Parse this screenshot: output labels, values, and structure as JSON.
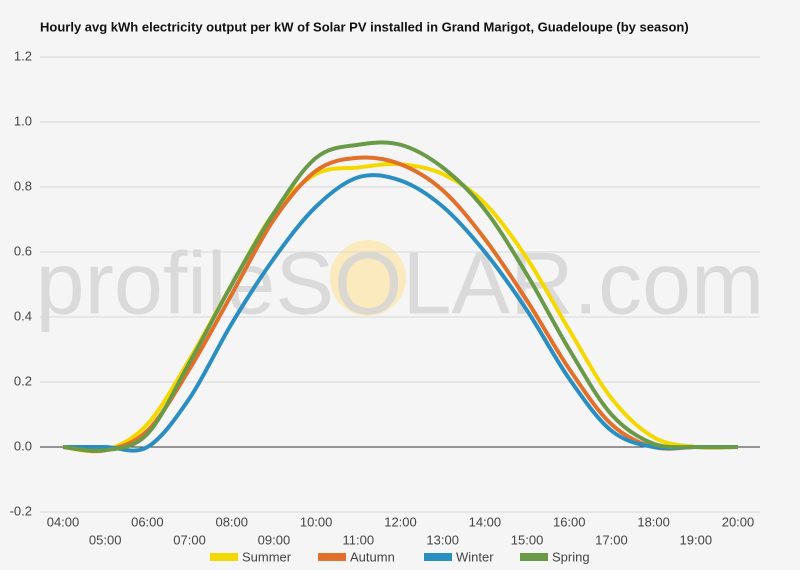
{
  "chart_data": {
    "type": "line",
    "title": "Hourly avg kWh electricity output per kW of Solar PV installed in Grand Marigot, Guadeloupe (by season)",
    "watermark": "profileSOLAR.com",
    "categories": [
      "04:00",
      "05:00",
      "06:00",
      "07:00",
      "08:00",
      "09:00",
      "10:00",
      "11:00",
      "12:00",
      "13:00",
      "14:00",
      "15:00",
      "16:00",
      "17:00",
      "18:00",
      "19:00",
      "20:00"
    ],
    "series": [
      {
        "name": "Summer",
        "color": "#f5d800",
        "values": [
          0,
          -0.01,
          0.07,
          0.27,
          0.5,
          0.72,
          0.84,
          0.86,
          0.87,
          0.84,
          0.75,
          0.58,
          0.36,
          0.15,
          0.03,
          0,
          0
        ]
      },
      {
        "name": "Autumn",
        "color": "#e0702a",
        "values": [
          0,
          -0.01,
          0.05,
          0.24,
          0.47,
          0.7,
          0.85,
          0.89,
          0.87,
          0.79,
          0.64,
          0.45,
          0.24,
          0.07,
          0,
          0,
          0
        ]
      },
      {
        "name": "Winter",
        "color": "#2a8fc0",
        "values": [
          0,
          0,
          0,
          0.15,
          0.38,
          0.58,
          0.74,
          0.83,
          0.82,
          0.74,
          0.6,
          0.42,
          0.21,
          0.05,
          0,
          0,
          0
        ]
      },
      {
        "name": "Spring",
        "color": "#6a9a48",
        "values": [
          0,
          -0.01,
          0.04,
          0.26,
          0.5,
          0.72,
          0.89,
          0.93,
          0.93,
          0.86,
          0.73,
          0.53,
          0.3,
          0.1,
          0.01,
          0,
          0
        ]
      }
    ],
    "ylim": [
      -0.2,
      1.2
    ],
    "yticks": [
      {
        "value": -0.2,
        "label": "-0.2"
      },
      {
        "value": 0,
        "label": "0.0"
      },
      {
        "value": 0.2,
        "label": "0.2"
      },
      {
        "value": 0.4,
        "label": "0.4"
      },
      {
        "value": 0.6,
        "label": "0.6"
      },
      {
        "value": 0.8,
        "label": "0.8"
      },
      {
        "value": 1,
        "label": "1.0"
      },
      {
        "value": 1.2,
        "label": "1.2"
      }
    ],
    "grid": true,
    "legend": "bottom"
  }
}
